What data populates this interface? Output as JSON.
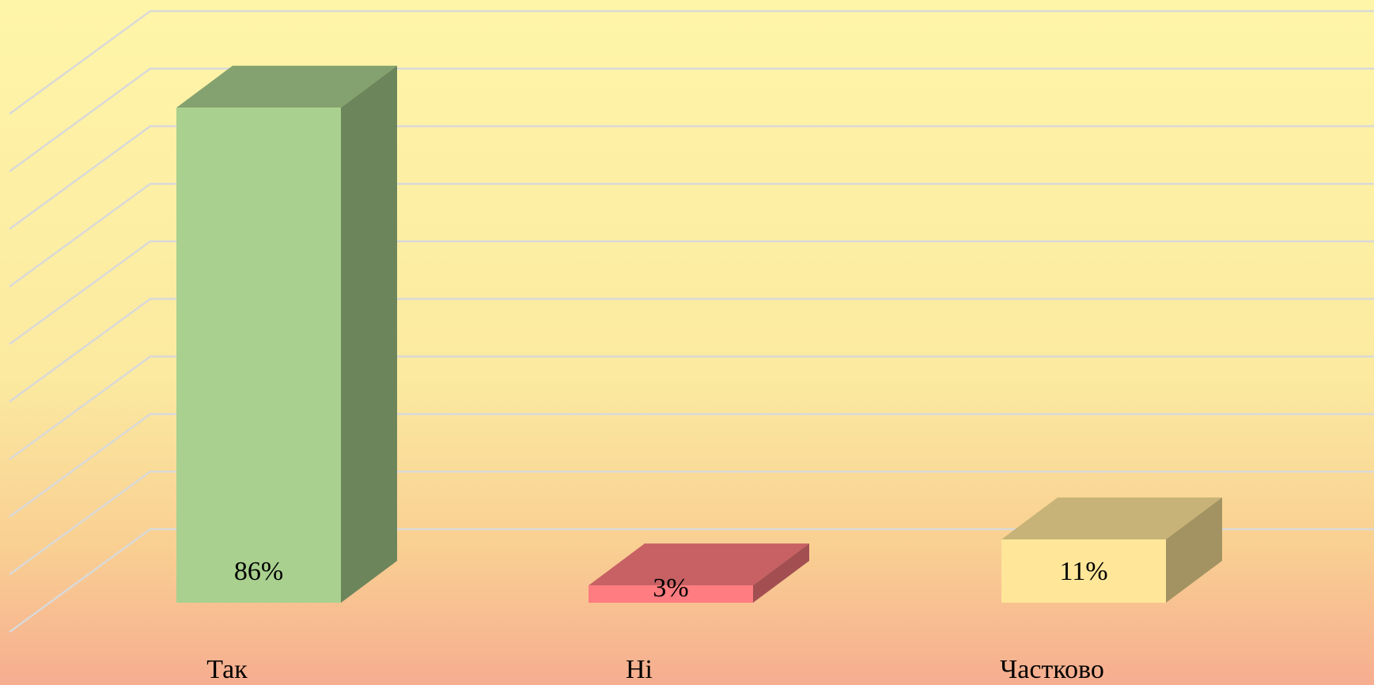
{
  "chart_data": {
    "type": "bar3d",
    "categories": [
      "Так",
      "Ні",
      "Частково"
    ],
    "values": [
      86,
      3,
      11
    ],
    "value_labels": [
      "86%",
      "3%",
      "11%"
    ],
    "colors": [
      "#a9d08e",
      "#ff7c80",
      "#ffe699"
    ],
    "ylim": [
      0,
      90
    ],
    "yticks": [
      0,
      10,
      20,
      30,
      40,
      50,
      60,
      70,
      80,
      90
    ],
    "grid": true
  }
}
